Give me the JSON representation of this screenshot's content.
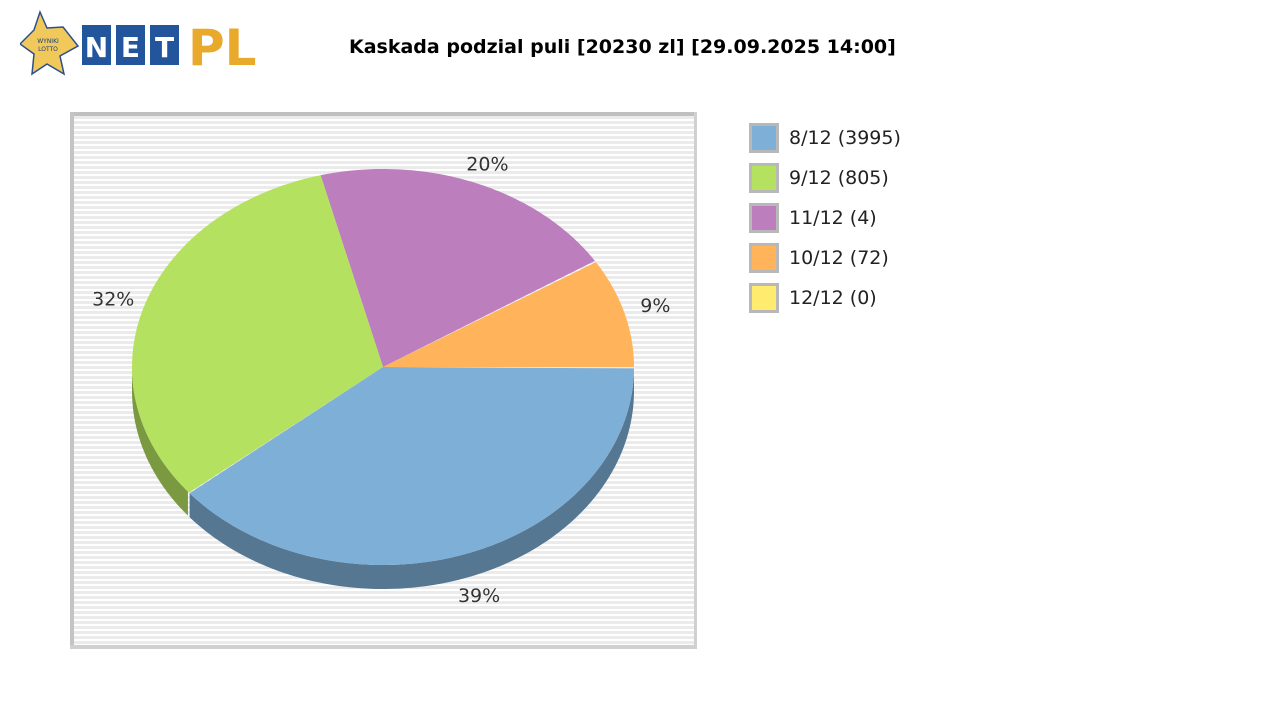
{
  "logo": {
    "text": "WYNIKI LOTTO NET PL"
  },
  "chart_data": {
    "type": "pie",
    "title": "Kaskada podzial puli [20230 zl] [29.09.2025 14:00]",
    "slices": [
      {
        "legend": "10/12 (72)",
        "value": 9,
        "label": "9%",
        "color": "#ffb35a"
      },
      {
        "legend": "11/12 (4)",
        "value": 20,
        "label": "20%",
        "color": "#bd7ebe"
      },
      {
        "legend": "9/12 (805)",
        "value": 32,
        "label": "32%",
        "color": "#b5e160"
      },
      {
        "legend": "8/12 (3995)",
        "value": 39,
        "label": "39%",
        "color": "#7eafd6"
      },
      {
        "legend": "12/12 (0)",
        "value": 0,
        "label": "",
        "color": "#ffec6e"
      }
    ],
    "legend_order": [
      3,
      2,
      1,
      0,
      4
    ],
    "legend_placement": "right",
    "three_d": true
  }
}
